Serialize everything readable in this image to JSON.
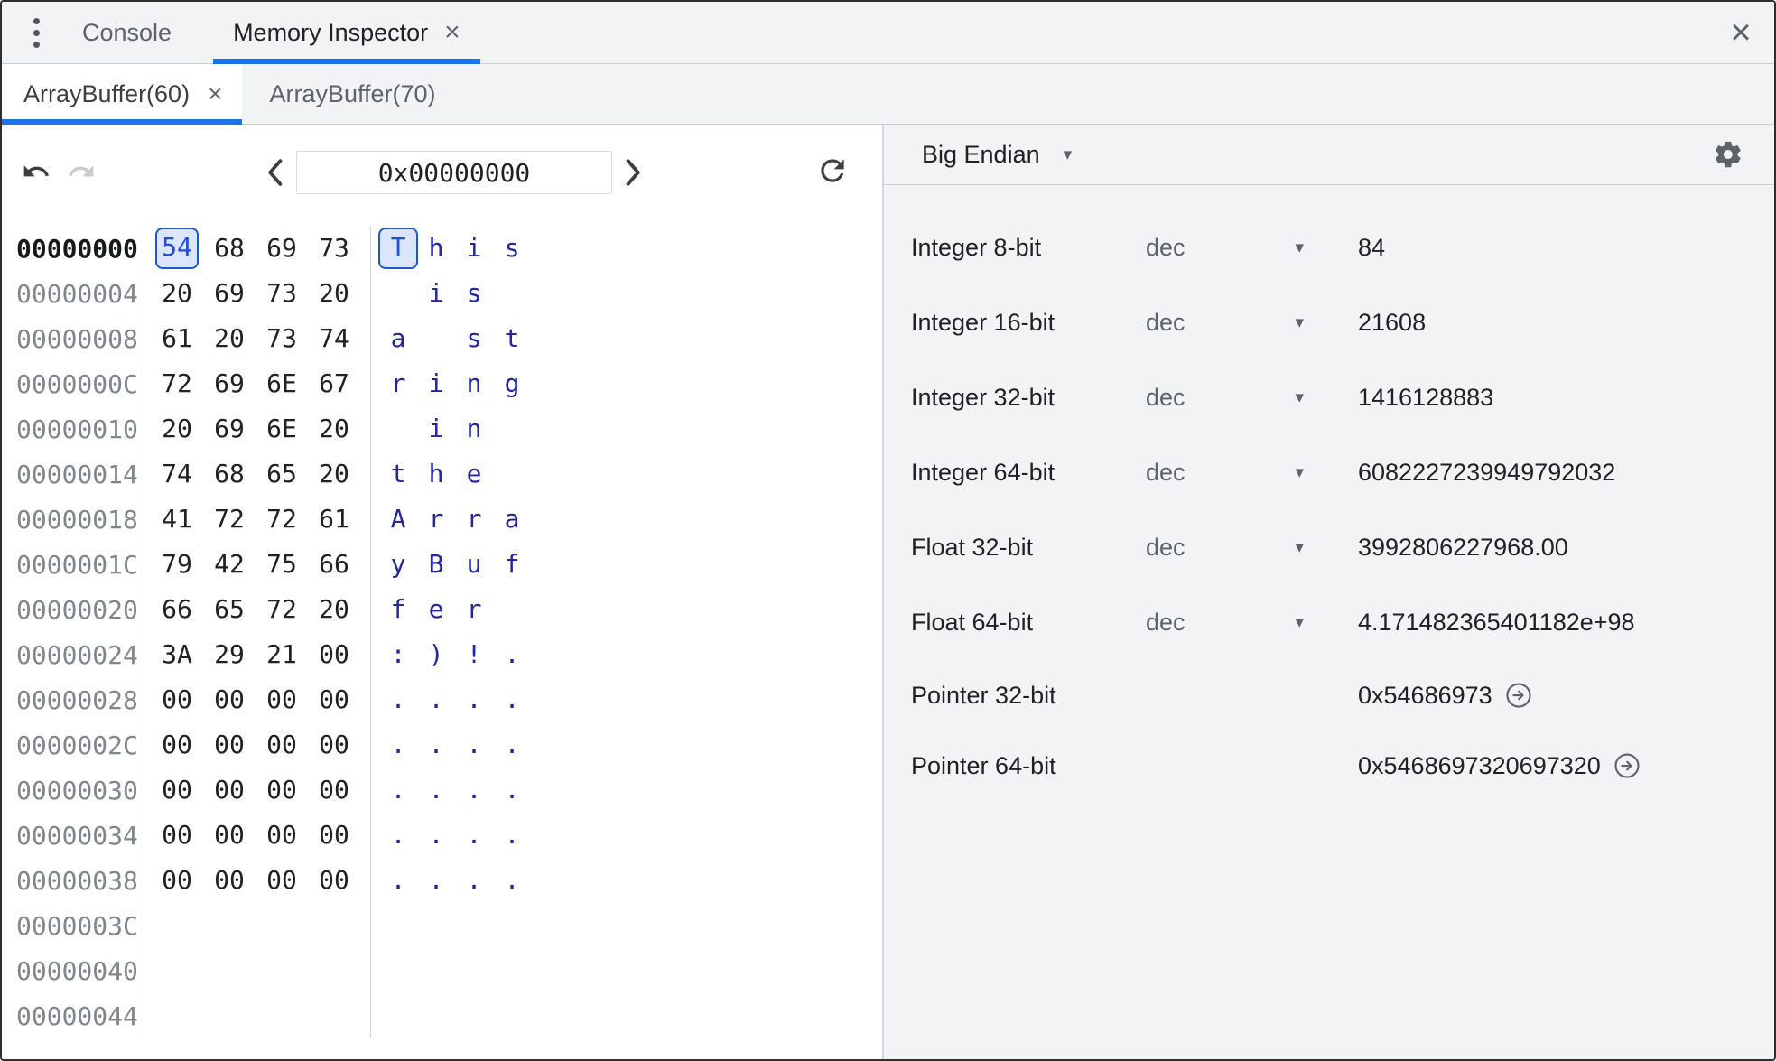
{
  "colors": {
    "accent": "#1a73e8",
    "panel_bg": "#f1f3f4",
    "text_dark": "#202124",
    "text_gray": "#5f6368",
    "address_gray": "#80868b",
    "ascii_blue": "#23279e",
    "selected_bg": "#dbe6fd",
    "selected_border": "#1e57c9",
    "selected_text": "#1d4fd7"
  },
  "drawer": {
    "menu_icon": "kebab-menu",
    "tabs": [
      {
        "label": "Console",
        "active": false
      },
      {
        "label": "Memory Inspector",
        "active": true,
        "close": "×"
      }
    ],
    "close_button": "×"
  },
  "buffer_tabs": [
    {
      "label": "ArrayBuffer(60)",
      "close": "×",
      "active": true
    },
    {
      "label": "ArrayBuffer(70)",
      "active": false
    }
  ],
  "navigation": {
    "undo_icon": "undo-arrow",
    "redo_icon": "redo-arrow",
    "previous_page_icon": "chevron-left",
    "next_page_icon": "chevron-right",
    "refresh_icon": "refresh-arrow",
    "address_input_value": "0x00000000"
  },
  "hex_view": {
    "rows": [
      {
        "address": "00000000",
        "address_bold": true,
        "selected_index": 0,
        "bytes": [
          "54",
          "68",
          "69",
          "73"
        ],
        "ascii": [
          "T",
          "h",
          "i",
          "s"
        ]
      },
      {
        "address": "00000004",
        "bytes": [
          "20",
          "69",
          "73",
          "20"
        ],
        "ascii": [
          " ",
          "i",
          "s",
          " "
        ]
      },
      {
        "address": "00000008",
        "bytes": [
          "61",
          "20",
          "73",
          "74"
        ],
        "ascii": [
          "a",
          " ",
          "s",
          "t"
        ]
      },
      {
        "address": "0000000C",
        "bytes": [
          "72",
          "69",
          "6E",
          "67"
        ],
        "ascii": [
          "r",
          "i",
          "n",
          "g"
        ]
      },
      {
        "address": "00000010",
        "bytes": [
          "20",
          "69",
          "6E",
          "20"
        ],
        "ascii": [
          " ",
          "i",
          "n",
          " "
        ]
      },
      {
        "address": "00000014",
        "bytes": [
          "74",
          "68",
          "65",
          "20"
        ],
        "ascii": [
          "t",
          "h",
          "e",
          " "
        ]
      },
      {
        "address": "00000018",
        "bytes": [
          "41",
          "72",
          "72",
          "61"
        ],
        "ascii": [
          "A",
          "r",
          "r",
          "a"
        ]
      },
      {
        "address": "0000001C",
        "bytes": [
          "79",
          "42",
          "75",
          "66"
        ],
        "ascii": [
          "y",
          "B",
          "u",
          "f"
        ]
      },
      {
        "address": "00000020",
        "bytes": [
          "66",
          "65",
          "72",
          "20"
        ],
        "ascii": [
          "f",
          "e",
          "r",
          " "
        ]
      },
      {
        "address": "00000024",
        "bytes": [
          "3A",
          "29",
          "21",
          "00"
        ],
        "ascii": [
          ":",
          ")",
          "!",
          "."
        ]
      },
      {
        "address": "00000028",
        "bytes": [
          "00",
          "00",
          "00",
          "00"
        ],
        "ascii": [
          ".",
          ".",
          ".",
          "."
        ]
      },
      {
        "address": "0000002C",
        "bytes": [
          "00",
          "00",
          "00",
          "00"
        ],
        "ascii": [
          ".",
          ".",
          ".",
          "."
        ]
      },
      {
        "address": "00000030",
        "bytes": [
          "00",
          "00",
          "00",
          "00"
        ],
        "ascii": [
          ".",
          ".",
          ".",
          "."
        ]
      },
      {
        "address": "00000034",
        "bytes": [
          "00",
          "00",
          "00",
          "00"
        ],
        "ascii": [
          ".",
          ".",
          ".",
          "."
        ]
      },
      {
        "address": "00000038",
        "bytes": [
          "00",
          "00",
          "00",
          "00"
        ],
        "ascii": [
          ".",
          ".",
          ".",
          "."
        ]
      },
      {
        "address": "0000003C",
        "bytes": [],
        "ascii": []
      },
      {
        "address": "00000040",
        "bytes": [],
        "ascii": []
      },
      {
        "address": "00000044",
        "bytes": [],
        "ascii": []
      }
    ]
  },
  "value_interpreter": {
    "endianness_selected": "Big Endian",
    "settings_icon": "gear",
    "rows": [
      {
        "label": "Integer 8-bit",
        "format": "dec",
        "value": "84"
      },
      {
        "label": "Integer 16-bit",
        "format": "dec",
        "value": "21608"
      },
      {
        "label": "Integer 32-bit",
        "format": "dec",
        "value": "1416128883"
      },
      {
        "label": "Integer 64-bit",
        "format": "dec",
        "value": "6082227239949792032"
      },
      {
        "label": "Float 32-bit",
        "format": "dec",
        "value": "3992806227968.00"
      },
      {
        "label": "Float 64-bit",
        "format": "dec",
        "value": "4.171482365401182e+98"
      },
      {
        "label": "Pointer 32-bit",
        "value": "0x54686973",
        "jump": true
      },
      {
        "label": "Pointer 64-bit",
        "value": "0x5468697320697320",
        "jump": true
      }
    ]
  }
}
